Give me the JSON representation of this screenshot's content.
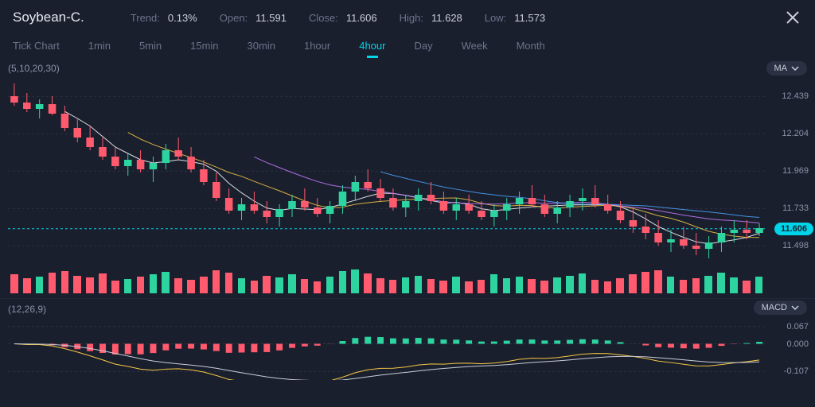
{
  "header": {
    "symbol": "Soybean-C.",
    "trend_label": "Trend:",
    "trend_value": "0.13%",
    "open_label": "Open:",
    "open_value": "11.591",
    "close_label": "Close:",
    "close_value": "11.606",
    "high_label": "High:",
    "high_value": "11.628",
    "low_label": "Low:",
    "low_value": "11.573"
  },
  "timeframes": {
    "items": [
      "Tick Chart",
      "1min",
      "5min",
      "15min",
      "30min",
      "1hour",
      "4hour",
      "Day",
      "Week",
      "Month"
    ],
    "active_index": 6
  },
  "main": {
    "ma_params": "(5,10,20,30)",
    "indicator_label": "MA",
    "ylim": [
      11.4,
      12.55
    ],
    "yticks": [
      12.439,
      12.204,
      11.969,
      11.733,
      11.498
    ],
    "ytick_labels": [
      "12.439",
      "12.204",
      "11.969",
      "11.733",
      "11.498"
    ],
    "current_price": 11.606,
    "current_price_label": "11.606",
    "grid_color": "#2a3142",
    "bg_color": "#1a1f2e",
    "up_color": "#2dd4a0",
    "down_color": "#ff5a6e",
    "ma_colors": [
      "#ffffff",
      "#f5c842",
      "#c77dff",
      "#4da6ff"
    ],
    "candles": [
      {
        "o": 12.44,
        "h": 12.52,
        "l": 12.38,
        "c": 12.4,
        "v": 22
      },
      {
        "o": 12.4,
        "h": 12.46,
        "l": 12.34,
        "c": 12.36,
        "v": 18
      },
      {
        "o": 12.36,
        "h": 12.42,
        "l": 12.3,
        "c": 12.39,
        "v": 20
      },
      {
        "o": 12.39,
        "h": 12.44,
        "l": 12.32,
        "c": 12.33,
        "v": 24
      },
      {
        "o": 12.33,
        "h": 12.38,
        "l": 12.22,
        "c": 12.24,
        "v": 26
      },
      {
        "o": 12.24,
        "h": 12.3,
        "l": 12.15,
        "c": 12.18,
        "v": 21
      },
      {
        "o": 12.18,
        "h": 12.25,
        "l": 12.1,
        "c": 12.12,
        "v": 19
      },
      {
        "o": 12.12,
        "h": 12.18,
        "l": 12.04,
        "c": 12.06,
        "v": 23
      },
      {
        "o": 12.06,
        "h": 12.12,
        "l": 11.98,
        "c": 12.0,
        "v": 15
      },
      {
        "o": 12.0,
        "h": 12.08,
        "l": 11.94,
        "c": 12.04,
        "v": 17
      },
      {
        "o": 12.04,
        "h": 12.1,
        "l": 11.96,
        "c": 11.98,
        "v": 20
      },
      {
        "o": 11.98,
        "h": 12.06,
        "l": 11.9,
        "c": 12.02,
        "v": 22
      },
      {
        "o": 12.02,
        "h": 12.14,
        "l": 11.98,
        "c": 12.1,
        "v": 25
      },
      {
        "o": 12.1,
        "h": 12.18,
        "l": 12.04,
        "c": 12.06,
        "v": 18
      },
      {
        "o": 12.06,
        "h": 12.12,
        "l": 11.96,
        "c": 11.98,
        "v": 16
      },
      {
        "o": 11.98,
        "h": 12.04,
        "l": 11.88,
        "c": 11.9,
        "v": 20
      },
      {
        "o": 11.9,
        "h": 11.96,
        "l": 11.78,
        "c": 11.8,
        "v": 27
      },
      {
        "o": 11.8,
        "h": 11.86,
        "l": 11.7,
        "c": 11.72,
        "v": 24
      },
      {
        "o": 11.72,
        "h": 11.8,
        "l": 11.66,
        "c": 11.76,
        "v": 18
      },
      {
        "o": 11.76,
        "h": 11.84,
        "l": 11.7,
        "c": 11.72,
        "v": 15
      },
      {
        "o": 11.72,
        "h": 11.78,
        "l": 11.64,
        "c": 11.68,
        "v": 21
      },
      {
        "o": 11.68,
        "h": 11.76,
        "l": 11.62,
        "c": 11.73,
        "v": 19
      },
      {
        "o": 11.73,
        "h": 11.82,
        "l": 11.68,
        "c": 11.78,
        "v": 22
      },
      {
        "o": 11.78,
        "h": 11.86,
        "l": 11.72,
        "c": 11.74,
        "v": 17
      },
      {
        "o": 11.74,
        "h": 11.8,
        "l": 11.68,
        "c": 11.7,
        "v": 14
      },
      {
        "o": 11.7,
        "h": 11.78,
        "l": 11.64,
        "c": 11.75,
        "v": 20
      },
      {
        "o": 11.75,
        "h": 11.88,
        "l": 11.7,
        "c": 11.84,
        "v": 26
      },
      {
        "o": 11.84,
        "h": 11.94,
        "l": 11.78,
        "c": 11.9,
        "v": 28
      },
      {
        "o": 11.9,
        "h": 11.98,
        "l": 11.84,
        "c": 11.86,
        "v": 23
      },
      {
        "o": 11.86,
        "h": 11.92,
        "l": 11.78,
        "c": 11.8,
        "v": 18
      },
      {
        "o": 11.8,
        "h": 11.86,
        "l": 11.72,
        "c": 11.74,
        "v": 16
      },
      {
        "o": 11.74,
        "h": 11.82,
        "l": 11.68,
        "c": 11.78,
        "v": 19
      },
      {
        "o": 11.78,
        "h": 11.86,
        "l": 11.72,
        "c": 11.82,
        "v": 21
      },
      {
        "o": 11.82,
        "h": 11.9,
        "l": 11.76,
        "c": 11.78,
        "v": 17
      },
      {
        "o": 11.78,
        "h": 11.84,
        "l": 11.7,
        "c": 11.72,
        "v": 15
      },
      {
        "o": 11.72,
        "h": 11.8,
        "l": 11.66,
        "c": 11.76,
        "v": 20
      },
      {
        "o": 11.76,
        "h": 11.82,
        "l": 11.7,
        "c": 11.72,
        "v": 14
      },
      {
        "o": 11.72,
        "h": 11.78,
        "l": 11.66,
        "c": 11.68,
        "v": 16
      },
      {
        "o": 11.68,
        "h": 11.76,
        "l": 11.62,
        "c": 11.72,
        "v": 22
      },
      {
        "o": 11.72,
        "h": 11.8,
        "l": 11.66,
        "c": 11.76,
        "v": 18
      },
      {
        "o": 11.76,
        "h": 11.84,
        "l": 11.7,
        "c": 11.8,
        "v": 20
      },
      {
        "o": 11.8,
        "h": 11.88,
        "l": 11.74,
        "c": 11.76,
        "v": 17
      },
      {
        "o": 11.76,
        "h": 11.82,
        "l": 11.68,
        "c": 11.7,
        "v": 15
      },
      {
        "o": 11.7,
        "h": 11.78,
        "l": 11.64,
        "c": 11.74,
        "v": 19
      },
      {
        "o": 11.74,
        "h": 11.82,
        "l": 11.68,
        "c": 11.78,
        "v": 21
      },
      {
        "o": 11.78,
        "h": 11.86,
        "l": 11.72,
        "c": 11.8,
        "v": 23
      },
      {
        "o": 11.8,
        "h": 11.88,
        "l": 11.74,
        "c": 11.76,
        "v": 16
      },
      {
        "o": 11.76,
        "h": 11.82,
        "l": 11.7,
        "c": 11.72,
        "v": 14
      },
      {
        "o": 11.72,
        "h": 11.78,
        "l": 11.64,
        "c": 11.66,
        "v": 18
      },
      {
        "o": 11.66,
        "h": 11.74,
        "l": 11.58,
        "c": 11.62,
        "v": 22
      },
      {
        "o": 11.62,
        "h": 11.7,
        "l": 11.54,
        "c": 11.58,
        "v": 25
      },
      {
        "o": 11.58,
        "h": 11.66,
        "l": 11.5,
        "c": 11.52,
        "v": 27
      },
      {
        "o": 11.52,
        "h": 11.6,
        "l": 11.46,
        "c": 11.54,
        "v": 20
      },
      {
        "o": 11.54,
        "h": 11.62,
        "l": 11.48,
        "c": 11.5,
        "v": 16
      },
      {
        "o": 11.5,
        "h": 11.58,
        "l": 11.44,
        "c": 11.48,
        "v": 18
      },
      {
        "o": 11.48,
        "h": 11.56,
        "l": 11.42,
        "c": 11.52,
        "v": 21
      },
      {
        "o": 11.52,
        "h": 11.62,
        "l": 11.46,
        "c": 11.58,
        "v": 24
      },
      {
        "o": 11.58,
        "h": 11.66,
        "l": 11.52,
        "c": 11.6,
        "v": 19
      },
      {
        "o": 11.6,
        "h": 11.66,
        "l": 11.54,
        "c": 11.58,
        "v": 15
      },
      {
        "o": 11.58,
        "h": 11.64,
        "l": 11.56,
        "c": 11.61,
        "v": 20
      }
    ],
    "ma_periods": [
      5,
      10,
      20,
      30
    ]
  },
  "macd": {
    "params": "(12,26,9)",
    "indicator_label": "MACD",
    "ylim": [
      -0.14,
      0.1
    ],
    "yticks": [
      0.067,
      0.0,
      -0.107
    ],
    "ytick_labels": [
      "0.067",
      "0.000",
      "-0.107"
    ],
    "line_colors": [
      "#f5c842",
      "#c8cdd8"
    ],
    "hist_up_color": "#2dd4a0",
    "hist_down_color": "#ff5a6e"
  }
}
